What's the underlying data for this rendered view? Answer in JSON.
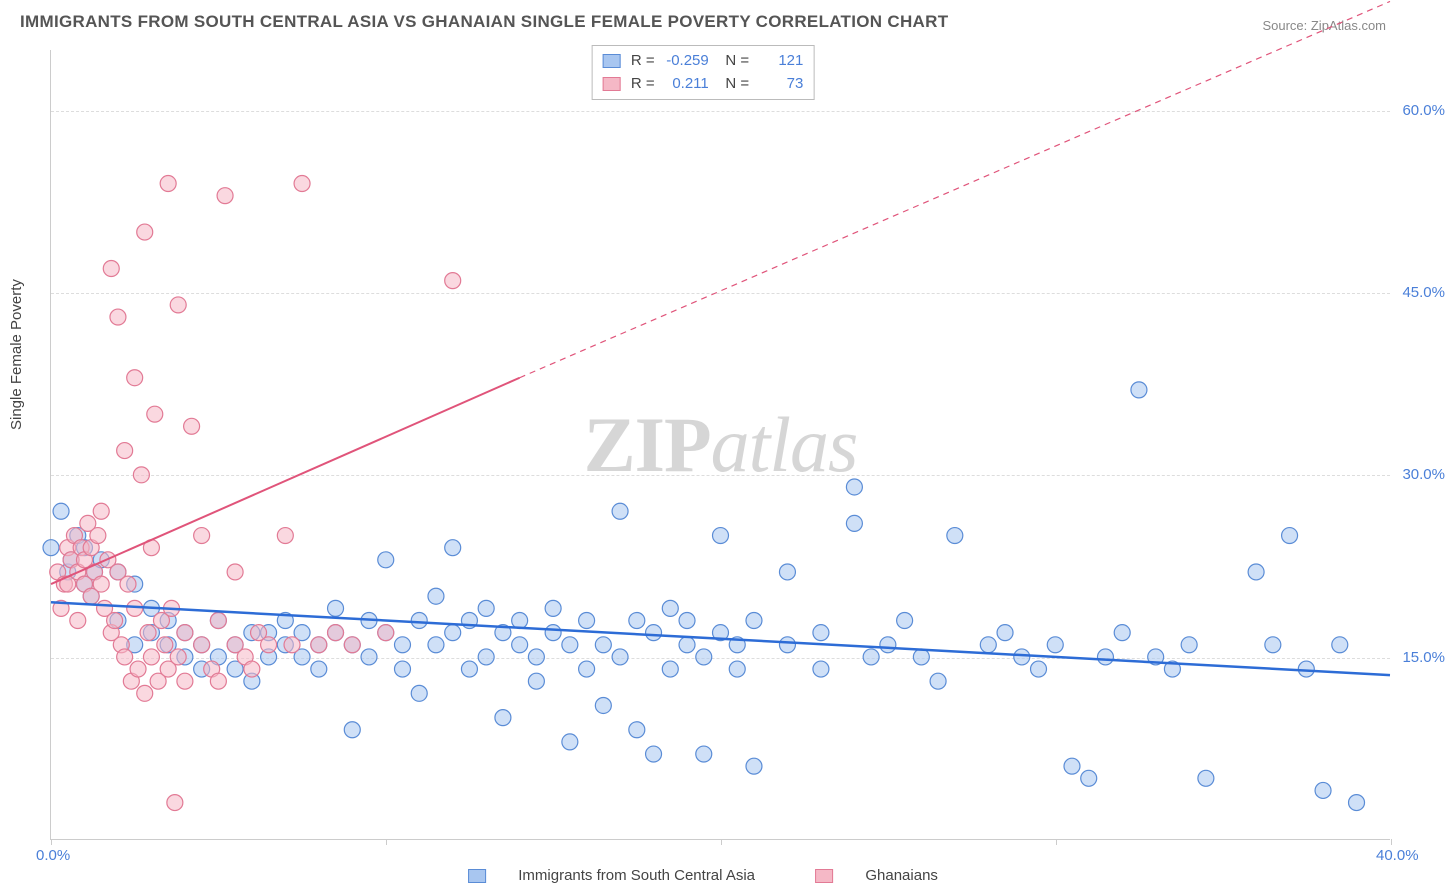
{
  "title": "IMMIGRANTS FROM SOUTH CENTRAL ASIA VS GHANAIAN SINGLE FEMALE POVERTY CORRELATION CHART",
  "source": "Source: ZipAtlas.com",
  "watermark_zip": "ZIP",
  "watermark_atlas": "atlas",
  "ylabel": "Single Female Poverty",
  "chart": {
    "type": "scatter",
    "xlim": [
      0,
      40
    ],
    "ylim": [
      0,
      65
    ],
    "xticks": [
      0,
      10,
      20,
      30,
      40
    ],
    "xtick_labels": [
      "0.0%",
      "",
      "",
      "",
      "40.0%"
    ],
    "yticks": [
      15,
      30,
      45,
      60
    ],
    "ytick_labels": [
      "15.0%",
      "30.0%",
      "45.0%",
      "60.0%"
    ],
    "background_color": "#ffffff",
    "grid_color": "#dddddd",
    "marker_radius": 8,
    "marker_stroke_width": 1.2,
    "series": [
      {
        "name": "Immigrants from South Central Asia",
        "fill_color": "#a8c6f0",
        "stroke_color": "#5a8cd6",
        "fill_opacity": 0.55,
        "R": "-0.259",
        "N": "121",
        "trend": {
          "x1": 0,
          "y1": 19.5,
          "x2": 40,
          "y2": 13.5,
          "color": "#2d6cd6",
          "width": 2.5,
          "dash": ""
        },
        "points": [
          [
            0,
            24
          ],
          [
            0.3,
            27
          ],
          [
            0.5,
            22
          ],
          [
            0.6,
            23
          ],
          [
            0.8,
            25
          ],
          [
            1,
            21
          ],
          [
            1,
            24
          ],
          [
            1.2,
            20
          ],
          [
            1.3,
            22
          ],
          [
            1.5,
            23
          ],
          [
            2,
            22
          ],
          [
            2,
            18
          ],
          [
            2.5,
            21
          ],
          [
            2.5,
            16
          ],
          [
            3,
            17
          ],
          [
            3,
            19
          ],
          [
            3.5,
            16
          ],
          [
            3.5,
            18
          ],
          [
            4,
            15
          ],
          [
            4,
            17
          ],
          [
            4.5,
            16
          ],
          [
            4.5,
            14
          ],
          [
            5,
            15
          ],
          [
            5,
            18
          ],
          [
            5.5,
            16
          ],
          [
            5.5,
            14
          ],
          [
            6,
            17
          ],
          [
            6,
            13
          ],
          [
            6.5,
            17
          ],
          [
            6.5,
            15
          ],
          [
            7,
            16
          ],
          [
            7,
            18
          ],
          [
            7.5,
            15
          ],
          [
            7.5,
            17
          ],
          [
            8,
            16
          ],
          [
            8,
            14
          ],
          [
            8.5,
            17
          ],
          [
            8.5,
            19
          ],
          [
            9,
            16
          ],
          [
            9,
            9
          ],
          [
            9.5,
            18
          ],
          [
            9.5,
            15
          ],
          [
            10,
            17
          ],
          [
            10,
            23
          ],
          [
            10.5,
            16
          ],
          [
            10.5,
            14
          ],
          [
            11,
            18
          ],
          [
            11,
            12
          ],
          [
            11.5,
            16
          ],
          [
            11.5,
            20
          ],
          [
            12,
            24
          ],
          [
            12,
            17
          ],
          [
            12.5,
            18
          ],
          [
            12.5,
            14
          ],
          [
            13,
            19
          ],
          [
            13,
            15
          ],
          [
            13.5,
            17
          ],
          [
            13.5,
            10
          ],
          [
            14,
            16
          ],
          [
            14,
            18
          ],
          [
            14.5,
            15
          ],
          [
            14.5,
            13
          ],
          [
            15,
            17
          ],
          [
            15,
            19
          ],
          [
            15.5,
            8
          ],
          [
            15.5,
            16
          ],
          [
            16,
            18
          ],
          [
            16,
            14
          ],
          [
            16.5,
            16
          ],
          [
            16.5,
            11
          ],
          [
            17,
            27
          ],
          [
            17,
            15
          ],
          [
            17.5,
            18
          ],
          [
            17.5,
            9
          ],
          [
            18,
            17
          ],
          [
            18,
            7
          ],
          [
            18.5,
            19
          ],
          [
            18.5,
            14
          ],
          [
            19,
            16
          ],
          [
            19,
            18
          ],
          [
            19.5,
            15
          ],
          [
            19.5,
            7
          ],
          [
            20,
            17
          ],
          [
            20,
            25
          ],
          [
            20.5,
            16
          ],
          [
            20.5,
            14
          ],
          [
            21,
            6
          ],
          [
            21,
            18
          ],
          [
            22,
            16
          ],
          [
            22,
            22
          ],
          [
            23,
            17
          ],
          [
            23,
            14
          ],
          [
            24,
            26
          ],
          [
            24,
            29
          ],
          [
            24.5,
            15
          ],
          [
            25,
            16
          ],
          [
            25.5,
            18
          ],
          [
            26,
            15
          ],
          [
            26.5,
            13
          ],
          [
            27,
            25
          ],
          [
            28,
            16
          ],
          [
            28.5,
            17
          ],
          [
            29,
            15
          ],
          [
            29.5,
            14
          ],
          [
            30,
            16
          ],
          [
            30.5,
            6
          ],
          [
            31,
            5
          ],
          [
            31.5,
            15
          ],
          [
            32,
            17
          ],
          [
            32.5,
            37
          ],
          [
            33,
            15
          ],
          [
            33.5,
            14
          ],
          [
            34,
            16
          ],
          [
            34.5,
            5
          ],
          [
            36,
            22
          ],
          [
            36.5,
            16
          ],
          [
            37,
            25
          ],
          [
            37.5,
            14
          ],
          [
            38,
            4
          ],
          [
            38.5,
            16
          ],
          [
            39,
            3
          ]
        ]
      },
      {
        "name": "Ghanaians",
        "fill_color": "#f5b8c6",
        "stroke_color": "#e27a95",
        "fill_opacity": 0.55,
        "R": "0.211",
        "N": "73",
        "trend_solid": {
          "x1": 0,
          "y1": 21,
          "x2": 14,
          "y2": 38,
          "color": "#e0547a",
          "width": 2,
          "dash": ""
        },
        "trend_dashed": {
          "x1": 14,
          "y1": 38,
          "x2": 40,
          "y2": 69,
          "color": "#e0547a",
          "width": 1.2,
          "dash": "6,5"
        },
        "points": [
          [
            0.2,
            22
          ],
          [
            0.3,
            19
          ],
          [
            0.4,
            21
          ],
          [
            0.5,
            24
          ],
          [
            0.5,
            21
          ],
          [
            0.6,
            23
          ],
          [
            0.7,
            25
          ],
          [
            0.8,
            22
          ],
          [
            0.8,
            18
          ],
          [
            0.9,
            24
          ],
          [
            1,
            21
          ],
          [
            1,
            23
          ],
          [
            1.1,
            26
          ],
          [
            1.2,
            20
          ],
          [
            1.2,
            24
          ],
          [
            1.3,
            22
          ],
          [
            1.4,
            25
          ],
          [
            1.5,
            27
          ],
          [
            1.5,
            21
          ],
          [
            1.6,
            19
          ],
          [
            1.7,
            23
          ],
          [
            1.8,
            17
          ],
          [
            1.8,
            47
          ],
          [
            1.9,
            18
          ],
          [
            2,
            22
          ],
          [
            2,
            43
          ],
          [
            2.1,
            16
          ],
          [
            2.2,
            15
          ],
          [
            2.2,
            32
          ],
          [
            2.3,
            21
          ],
          [
            2.4,
            13
          ],
          [
            2.5,
            19
          ],
          [
            2.5,
            38
          ],
          [
            2.6,
            14
          ],
          [
            2.7,
            30
          ],
          [
            2.8,
            12
          ],
          [
            2.8,
            50
          ],
          [
            2.9,
            17
          ],
          [
            3,
            15
          ],
          [
            3,
            24
          ],
          [
            3.1,
            35
          ],
          [
            3.2,
            13
          ],
          [
            3.3,
            18
          ],
          [
            3.4,
            16
          ],
          [
            3.5,
            54
          ],
          [
            3.5,
            14
          ],
          [
            3.6,
            19
          ],
          [
            3.7,
            3
          ],
          [
            3.8,
            44
          ],
          [
            3.8,
            15
          ],
          [
            4,
            13
          ],
          [
            4,
            17
          ],
          [
            4.2,
            34
          ],
          [
            4.5,
            16
          ],
          [
            4.5,
            25
          ],
          [
            4.8,
            14
          ],
          [
            5,
            18
          ],
          [
            5,
            13
          ],
          [
            5.2,
            53
          ],
          [
            5.5,
            16
          ],
          [
            5.5,
            22
          ],
          [
            5.8,
            15
          ],
          [
            6,
            14
          ],
          [
            6.2,
            17
          ],
          [
            6.5,
            16
          ],
          [
            7,
            25
          ],
          [
            7.2,
            16
          ],
          [
            7.5,
            54
          ],
          [
            8,
            16
          ],
          [
            8.5,
            17
          ],
          [
            9,
            16
          ],
          [
            10,
            17
          ],
          [
            12,
            46
          ]
        ]
      }
    ]
  },
  "legend_bottom": [
    {
      "label": "Immigrants from South Central Asia",
      "fill": "#a8c6f0",
      "stroke": "#5a8cd6"
    },
    {
      "label": "Ghanaians",
      "fill": "#f5b8c6",
      "stroke": "#e27a95"
    }
  ]
}
